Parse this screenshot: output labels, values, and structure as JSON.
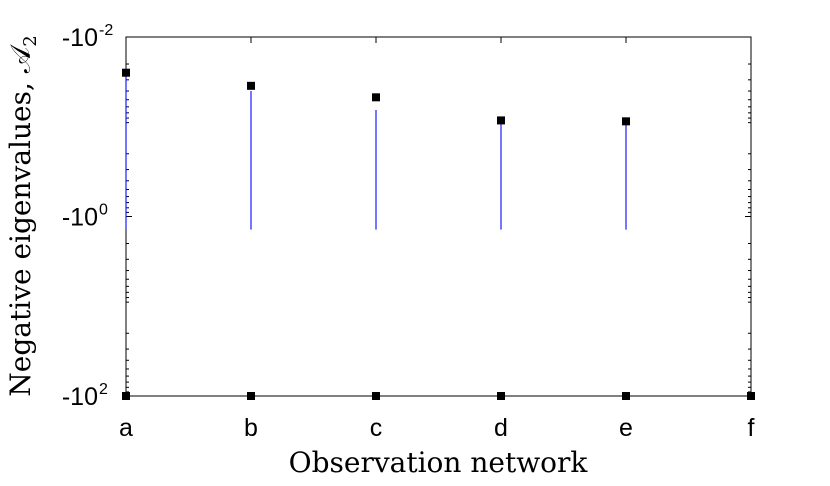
{
  "chart_data": {
    "type": "scatter",
    "xlabel": "Observation network",
    "ylabel": "Negative eigenvalues, 𝒜",
    "ylabel_subscript": "2",
    "yscale": "log",
    "y_axis_reversed": true,
    "ylim": [
      -0.01,
      -100
    ],
    "yticks": [
      {
        "value": -0.01,
        "base": "-10",
        "exp": "-2"
      },
      {
        "value": -1,
        "base": "-10",
        "exp": "0"
      },
      {
        "value": -100,
        "base": "-10",
        "exp": "2"
      }
    ],
    "categories": [
      "a",
      "b",
      "c",
      "d",
      "e",
      "f"
    ],
    "grid": false,
    "colors": {
      "markers": "#000000",
      "lines": "#1a1aff"
    },
    "series": [
      {
        "marker": "square",
        "max_values": [
          -0.025,
          -0.035,
          -0.047,
          -0.085,
          -0.087,
          null
        ],
        "min_values": [
          -100,
          -100,
          -100,
          -100,
          -100,
          -100
        ]
      },
      {
        "marker": "line",
        "upper_values": [
          -0.025,
          -0.04,
          -0.065,
          -0.09,
          -0.09,
          null
        ],
        "lower_values": [
          -1.4,
          -1.4,
          -1.4,
          -1.4,
          -1.4,
          null
        ]
      }
    ]
  }
}
